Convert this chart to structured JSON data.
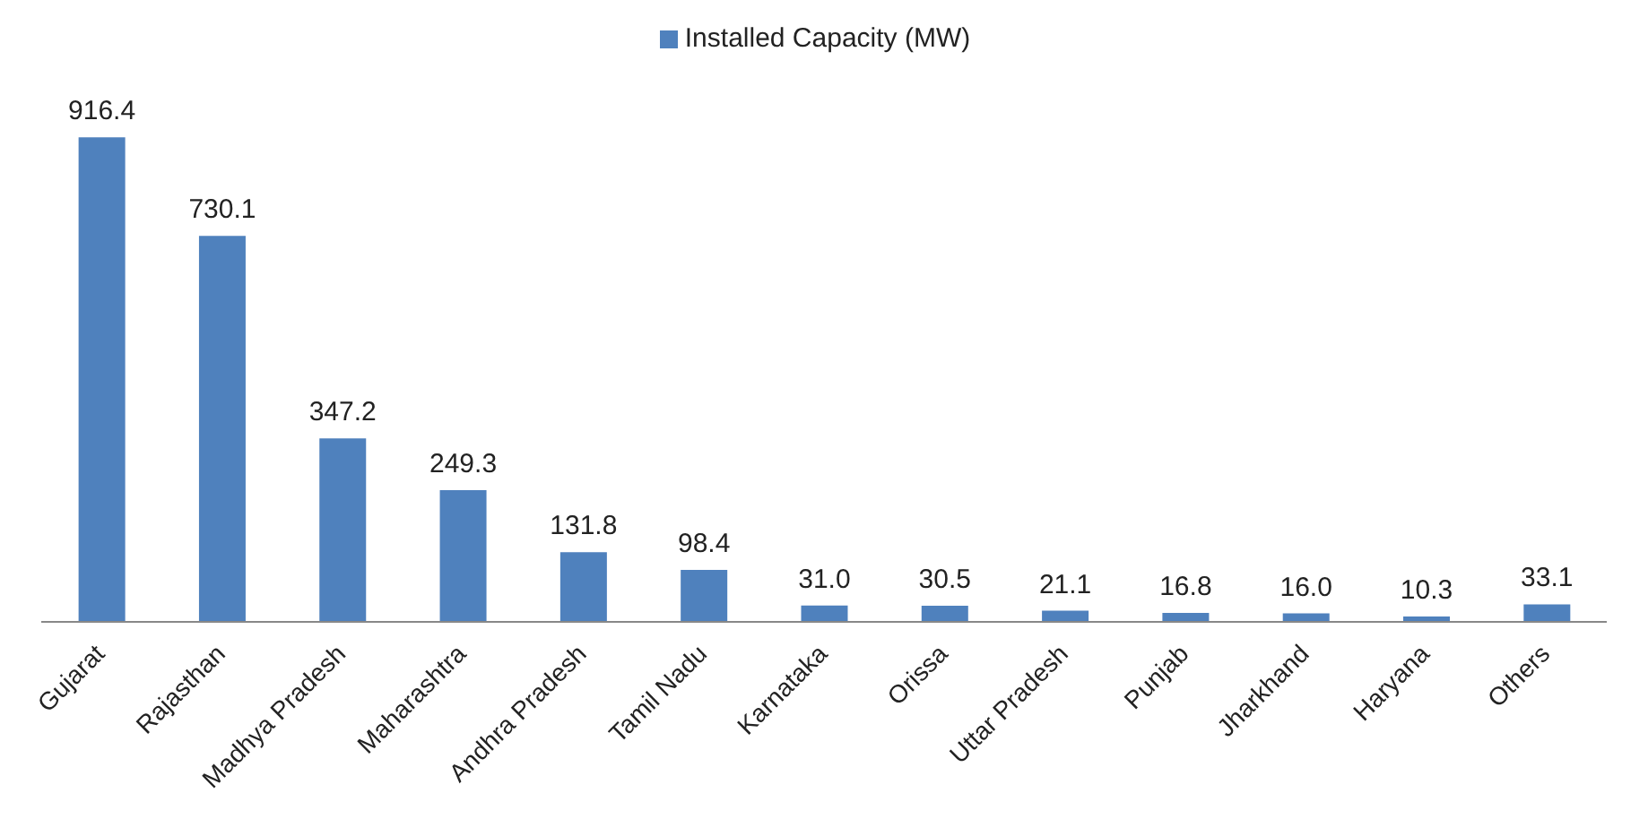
{
  "chart_data": {
    "type": "bar",
    "categories": [
      "Gujarat",
      "Rajasthan",
      "Madhya Pradesh",
      "Maharashtra",
      "Andhra Pradesh",
      "Tamil Nadu",
      "Karnataka",
      "Orissa",
      "Uttar Pradesh",
      "Punjab",
      "Jharkhand",
      "Haryana",
      "Others"
    ],
    "series": [
      {
        "name": "Installed Capacity (MW)",
        "color": "#4f81bd",
        "values": [
          916.4,
          730.1,
          347.2,
          249.3,
          131.8,
          98.4,
          31.0,
          30.5,
          21.1,
          16.8,
          16.0,
          10.3,
          33.1
        ],
        "value_labels": [
          "916.4",
          "730.1",
          "347.2",
          "249.3",
          "131.8",
          "98.4",
          "31.0",
          "30.5",
          "21.1",
          "16.8",
          "16.0",
          "10.3",
          "33.1"
        ]
      }
    ],
    "legend": "top",
    "grid": false
  }
}
